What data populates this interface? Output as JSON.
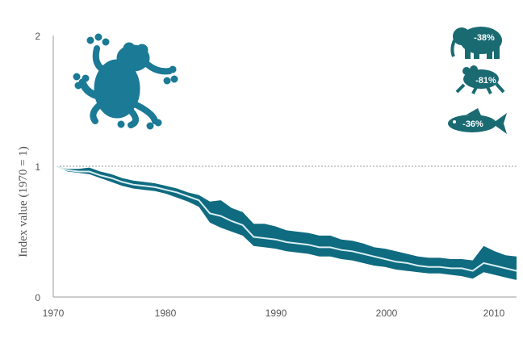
{
  "chart_data": {
    "type": "area",
    "title": "",
    "xlabel": "",
    "ylabel": "Index value (1970 = 1)",
    "xlim": [
      1970,
      2012
    ],
    "ylim": [
      0,
      2
    ],
    "xticks": [
      1970,
      1980,
      1990,
      2000,
      2010
    ],
    "yticks": [
      0,
      1,
      2
    ],
    "reference_line": 1,
    "colors": {
      "band": "#0f6b80",
      "line": "#d9eef2",
      "axis": "#999999",
      "frog": "#1b7a95",
      "icon": "#1a6a72"
    },
    "x": [
      1970,
      1971,
      1972,
      1973,
      1974,
      1975,
      1976,
      1977,
      1978,
      1979,
      1980,
      1981,
      1982,
      1983,
      1984,
      1985,
      1986,
      1987,
      1988,
      1989,
      1990,
      1991,
      1992,
      1993,
      1994,
      1995,
      1996,
      1997,
      1998,
      1999,
      2000,
      2001,
      2002,
      2003,
      2004,
      2005,
      2006,
      2007,
      2008,
      2009,
      2010,
      2011,
      2012
    ],
    "series": [
      {
        "values": [
          1.0,
          0.97,
          0.96,
          0.96,
          0.93,
          0.91,
          0.88,
          0.86,
          0.85,
          0.84,
          0.82,
          0.8,
          0.77,
          0.74,
          0.64,
          0.62,
          0.58,
          0.55,
          0.46,
          0.45,
          0.44,
          0.42,
          0.41,
          0.4,
          0.38,
          0.38,
          0.36,
          0.35,
          0.33,
          0.31,
          0.29,
          0.27,
          0.26,
          0.24,
          0.23,
          0.23,
          0.22,
          0.22,
          0.2,
          0.26,
          0.24,
          0.22,
          0.2
        ]
      }
    ],
    "band_upper": [
      1.0,
      0.98,
      0.98,
      0.99,
      0.96,
      0.94,
      0.91,
      0.89,
      0.88,
      0.87,
      0.85,
      0.83,
      0.8,
      0.78,
      0.73,
      0.74,
      0.68,
      0.65,
      0.56,
      0.56,
      0.54,
      0.51,
      0.5,
      0.49,
      0.47,
      0.47,
      0.44,
      0.43,
      0.41,
      0.38,
      0.37,
      0.35,
      0.33,
      0.31,
      0.3,
      0.3,
      0.29,
      0.29,
      0.28,
      0.39,
      0.35,
      0.32,
      0.31
    ],
    "band_lower": [
      1.0,
      0.96,
      0.95,
      0.94,
      0.91,
      0.88,
      0.85,
      0.83,
      0.82,
      0.81,
      0.79,
      0.76,
      0.73,
      0.69,
      0.57,
      0.53,
      0.5,
      0.47,
      0.39,
      0.38,
      0.37,
      0.35,
      0.34,
      0.33,
      0.31,
      0.31,
      0.29,
      0.28,
      0.26,
      0.24,
      0.23,
      0.21,
      0.2,
      0.19,
      0.18,
      0.18,
      0.17,
      0.16,
      0.14,
      0.19,
      0.17,
      0.15,
      0.13
    ],
    "annotations": [
      {
        "icon": "elephant-icon",
        "label": "-38%"
      },
      {
        "icon": "frog-icon",
        "label": "-81%"
      },
      {
        "icon": "fish-icon",
        "label": "-36%"
      }
    ]
  }
}
